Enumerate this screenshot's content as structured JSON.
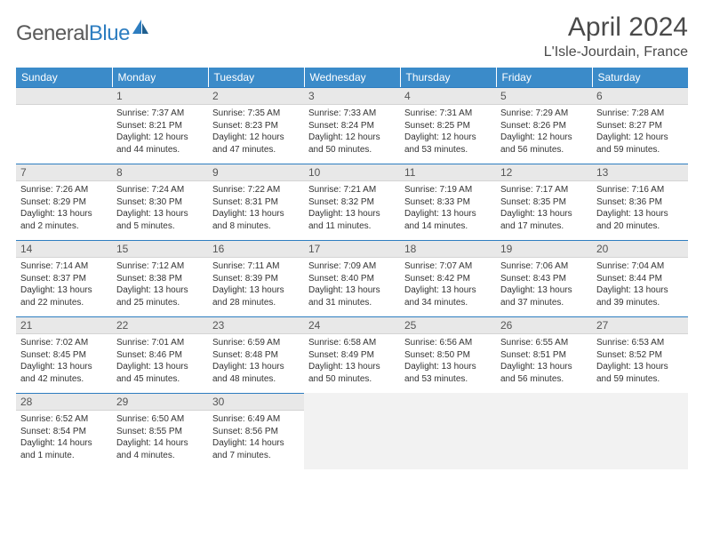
{
  "brand": {
    "name_gray": "General",
    "name_blue": "Blue"
  },
  "title": "April 2024",
  "location": "L'Isle-Jourdain, France",
  "colors": {
    "header_bg": "#3b8bc9",
    "header_text": "#ffffff",
    "daynum_bg": "#e8e8e8",
    "daynum_border_top": "#2d7dc0",
    "text": "#333333",
    "logo_gray": "#5a5a5a",
    "logo_blue": "#2d7dc0",
    "trailing_empty": "#f2f2f2"
  },
  "weekdays": [
    "Sunday",
    "Monday",
    "Tuesday",
    "Wednesday",
    "Thursday",
    "Friday",
    "Saturday"
  ],
  "leading_blanks": 1,
  "days": [
    {
      "n": 1,
      "sunrise": "7:37 AM",
      "sunset": "8:21 PM",
      "daylight": "12 hours and 44 minutes."
    },
    {
      "n": 2,
      "sunrise": "7:35 AM",
      "sunset": "8:23 PM",
      "daylight": "12 hours and 47 minutes."
    },
    {
      "n": 3,
      "sunrise": "7:33 AM",
      "sunset": "8:24 PM",
      "daylight": "12 hours and 50 minutes."
    },
    {
      "n": 4,
      "sunrise": "7:31 AM",
      "sunset": "8:25 PM",
      "daylight": "12 hours and 53 minutes."
    },
    {
      "n": 5,
      "sunrise": "7:29 AM",
      "sunset": "8:26 PM",
      "daylight": "12 hours and 56 minutes."
    },
    {
      "n": 6,
      "sunrise": "7:28 AM",
      "sunset": "8:27 PM",
      "daylight": "12 hours and 59 minutes."
    },
    {
      "n": 7,
      "sunrise": "7:26 AM",
      "sunset": "8:29 PM",
      "daylight": "13 hours and 2 minutes."
    },
    {
      "n": 8,
      "sunrise": "7:24 AM",
      "sunset": "8:30 PM",
      "daylight": "13 hours and 5 minutes."
    },
    {
      "n": 9,
      "sunrise": "7:22 AM",
      "sunset": "8:31 PM",
      "daylight": "13 hours and 8 minutes."
    },
    {
      "n": 10,
      "sunrise": "7:21 AM",
      "sunset": "8:32 PM",
      "daylight": "13 hours and 11 minutes."
    },
    {
      "n": 11,
      "sunrise": "7:19 AM",
      "sunset": "8:33 PM",
      "daylight": "13 hours and 14 minutes."
    },
    {
      "n": 12,
      "sunrise": "7:17 AM",
      "sunset": "8:35 PM",
      "daylight": "13 hours and 17 minutes."
    },
    {
      "n": 13,
      "sunrise": "7:16 AM",
      "sunset": "8:36 PM",
      "daylight": "13 hours and 20 minutes."
    },
    {
      "n": 14,
      "sunrise": "7:14 AM",
      "sunset": "8:37 PM",
      "daylight": "13 hours and 22 minutes."
    },
    {
      "n": 15,
      "sunrise": "7:12 AM",
      "sunset": "8:38 PM",
      "daylight": "13 hours and 25 minutes."
    },
    {
      "n": 16,
      "sunrise": "7:11 AM",
      "sunset": "8:39 PM",
      "daylight": "13 hours and 28 minutes."
    },
    {
      "n": 17,
      "sunrise": "7:09 AM",
      "sunset": "8:40 PM",
      "daylight": "13 hours and 31 minutes."
    },
    {
      "n": 18,
      "sunrise": "7:07 AM",
      "sunset": "8:42 PM",
      "daylight": "13 hours and 34 minutes."
    },
    {
      "n": 19,
      "sunrise": "7:06 AM",
      "sunset": "8:43 PM",
      "daylight": "13 hours and 37 minutes."
    },
    {
      "n": 20,
      "sunrise": "7:04 AM",
      "sunset": "8:44 PM",
      "daylight": "13 hours and 39 minutes."
    },
    {
      "n": 21,
      "sunrise": "7:02 AM",
      "sunset": "8:45 PM",
      "daylight": "13 hours and 42 minutes."
    },
    {
      "n": 22,
      "sunrise": "7:01 AM",
      "sunset": "8:46 PM",
      "daylight": "13 hours and 45 minutes."
    },
    {
      "n": 23,
      "sunrise": "6:59 AM",
      "sunset": "8:48 PM",
      "daylight": "13 hours and 48 minutes."
    },
    {
      "n": 24,
      "sunrise": "6:58 AM",
      "sunset": "8:49 PM",
      "daylight": "13 hours and 50 minutes."
    },
    {
      "n": 25,
      "sunrise": "6:56 AM",
      "sunset": "8:50 PM",
      "daylight": "13 hours and 53 minutes."
    },
    {
      "n": 26,
      "sunrise": "6:55 AM",
      "sunset": "8:51 PM",
      "daylight": "13 hours and 56 minutes."
    },
    {
      "n": 27,
      "sunrise": "6:53 AM",
      "sunset": "8:52 PM",
      "daylight": "13 hours and 59 minutes."
    },
    {
      "n": 28,
      "sunrise": "6:52 AM",
      "sunset": "8:54 PM",
      "daylight": "14 hours and 1 minute."
    },
    {
      "n": 29,
      "sunrise": "6:50 AM",
      "sunset": "8:55 PM",
      "daylight": "14 hours and 4 minutes."
    },
    {
      "n": 30,
      "sunrise": "6:49 AM",
      "sunset": "8:56 PM",
      "daylight": "14 hours and 7 minutes."
    }
  ],
  "labels": {
    "sunrise_prefix": "Sunrise: ",
    "sunset_prefix": "Sunset: ",
    "daylight_prefix": "Daylight: "
  }
}
